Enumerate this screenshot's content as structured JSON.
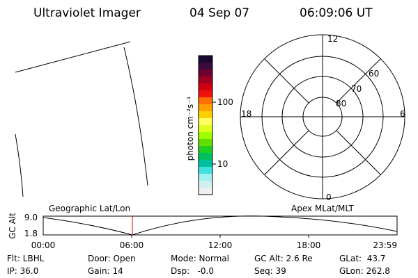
{
  "header": {
    "title": "Ultraviolet Imager",
    "date": "04 Sep 07",
    "time": "06:09:06 UT"
  },
  "colorbar": {
    "label": "photon cm⁻²s⁻¹",
    "ticks": [
      "100",
      "10"
    ]
  },
  "polar": {
    "mlt_labels": [
      "12",
      "6",
      "0",
      "18"
    ],
    "lat_labels": [
      "80",
      "70",
      "60"
    ]
  },
  "orbit_plot": {
    "left_label": "Geographic Lat/Lon",
    "right_label": "Apex MLat/MLT",
    "y_label": "GC Alt",
    "yticks": [
      "9.0",
      "1.8"
    ],
    "xticks": [
      "00:00",
      "06:00",
      "12:00",
      "18:00",
      "23:59"
    ]
  },
  "info": {
    "rows": [
      [
        "Flt: LBHL",
        "Door: Open",
        "Mode: Normal",
        "GC Alt: 2.6 Re",
        "GLat:  43.7"
      ],
      [
        "IP: 36.0",
        "Gain: 14",
        "Dsp:   -0.0",
        "Seq: 39",
        "GLon: 262.8"
      ]
    ]
  }
}
